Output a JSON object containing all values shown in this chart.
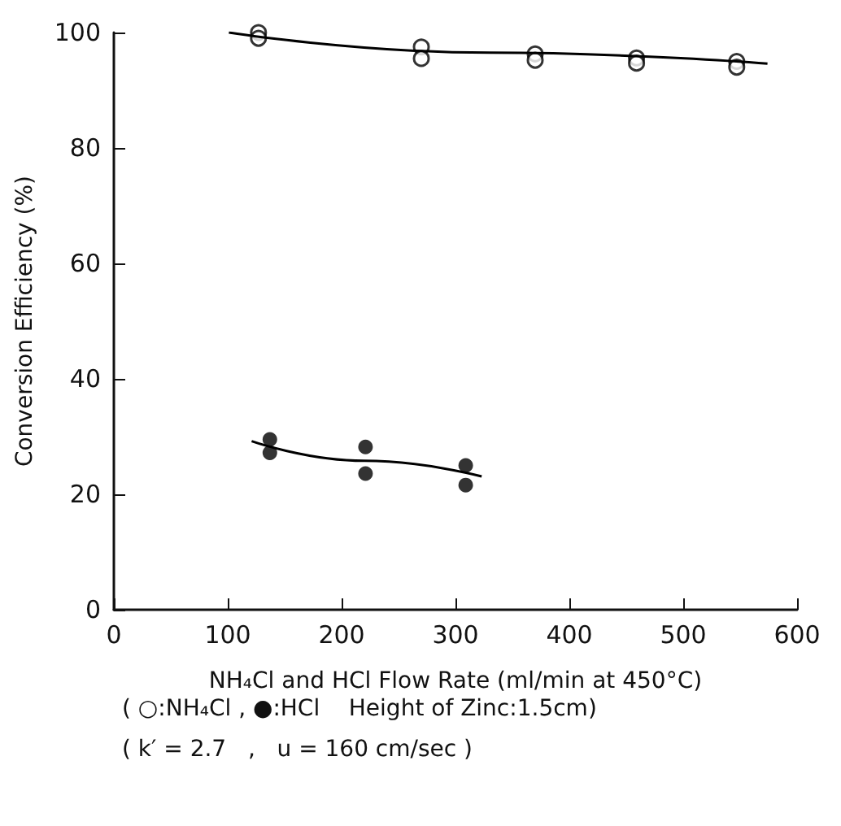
{
  "chart_data": {
    "type": "scatter",
    "xlabel": "NH₄Cl and HCl Flow Rate (ml/min at 450°C)",
    "ylabel": "Conversion Efficiency (%)",
    "annotations": [
      "( ○:NH₄Cl , ●:HCl    Height of Zinc:1.5cm)",
      "( k′ = 2.7   ,   u = 160 cm/sec )"
    ],
    "xlim": [
      0,
      600
    ],
    "xticks": [
      0,
      100,
      200,
      300,
      400,
      500,
      600
    ],
    "ylim": [
      0,
      100
    ],
    "yticks": [
      0,
      20,
      40,
      60,
      80,
      100
    ],
    "grid": false,
    "marker": "circle",
    "series": [
      {
        "color": "#000000",
        "x": [
          127,
          127,
          270,
          270,
          370,
          370,
          459,
          459,
          547,
          547
        ],
        "values": [
          100,
          99,
          97.5,
          95.5,
          96.3,
          95.2,
          95.6,
          94.7,
          95,
          94
        ]
      },
      {
        "color": "#000000",
        "x": [
          137,
          137,
          221,
          221,
          309,
          309
        ],
        "values": [
          29.5,
          27.2,
          28.2,
          23.6,
          25,
          21.6
        ]
      },
      {
        "type": "line",
        "color": "#000000",
        "marker": "none",
        "x": [
          101,
          330,
          574
        ],
        "values": [
          100,
          96.5,
          94.6
        ]
      },
      {
        "type": "line",
        "color": "#000000",
        "marker": "none",
        "x": [
          121,
          220,
          323
        ],
        "values": [
          29.2,
          25.8,
          23.1
        ]
      }
    ]
  }
}
